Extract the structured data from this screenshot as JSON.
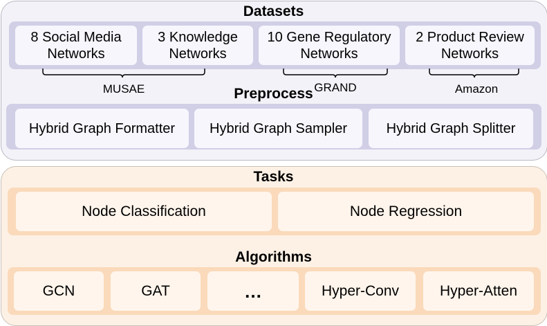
{
  "datasets": {
    "title": "Datasets",
    "items": [
      {
        "line1": "8 Social Media",
        "line2": "Networks"
      },
      {
        "line1": "3 Knowledge",
        "line2": "Networks"
      },
      {
        "line1": "10 Gene Regulatory",
        "line2": "Networks"
      },
      {
        "line1": "2 Product Review",
        "line2": "Networks"
      }
    ],
    "sources": [
      "MUSAE",
      "GRAND",
      "Amazon"
    ]
  },
  "preprocess": {
    "title": "Preprocess",
    "items": [
      "Hybrid Graph Formatter",
      "Hybrid Graph Sampler",
      "Hybrid Graph Splitter"
    ]
  },
  "tasks": {
    "title": "Tasks",
    "items": [
      "Node Classification",
      "Node Regression"
    ]
  },
  "algorithms": {
    "title": "Algorithms",
    "items": [
      "GCN",
      "GAT",
      "…",
      "Hyper-Conv",
      "Hyper-Atten"
    ]
  }
}
